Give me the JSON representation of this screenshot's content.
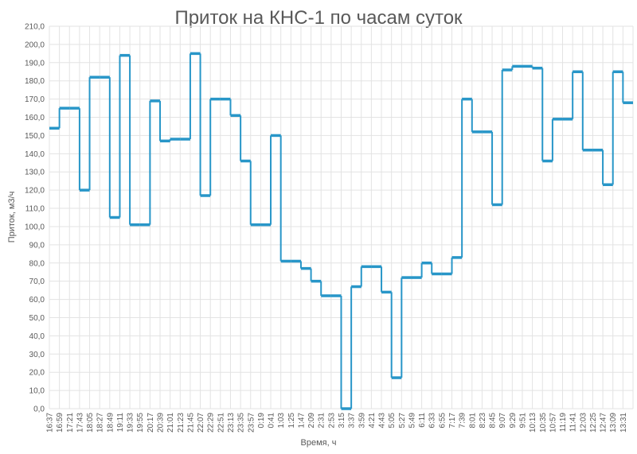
{
  "chart_data": {
    "type": "step-line",
    "title": "Приток на КНС-1 по часам суток",
    "x_label": "Время, ч",
    "y_label": "Приток, м3/ч",
    "categories": [
      "16:37",
      "16:59",
      "17:21",
      "17:43",
      "18:05",
      "18:27",
      "18:49",
      "19:11",
      "19:33",
      "19:55",
      "20:17",
      "20:39",
      "21:01",
      "21:23",
      "21:45",
      "22:07",
      "22:29",
      "22:51",
      "23:13",
      "23:35",
      "23:57",
      "0:19",
      "0:41",
      "1:03",
      "1:25",
      "1:47",
      "2:09",
      "2:31",
      "2:53",
      "3:15",
      "3:37",
      "3:59",
      "4:21",
      "4:43",
      "5:05",
      "5:27",
      "5:49",
      "6:11",
      "6:33",
      "6:55",
      "7:17",
      "7:39",
      "8:01",
      "8:23",
      "8:45",
      "9:07",
      "9:29",
      "9:51",
      "10:13",
      "10:35",
      "10:57",
      "11:19",
      "11:41",
      "12:03",
      "12:25",
      "12:47",
      "13:09",
      "13:31"
    ],
    "values": [
      154,
      165,
      165,
      120,
      182,
      182,
      105,
      194,
      101,
      101,
      169,
      147,
      148,
      148,
      195,
      117,
      170,
      170,
      161,
      136,
      101,
      101,
      150,
      81,
      81,
      77,
      70,
      62,
      62,
      0,
      67,
      78,
      78,
      64,
      17,
      72,
      72,
      80,
      74,
      74,
      83,
      170,
      152,
      152,
      112,
      186,
      188,
      188,
      187,
      136,
      159,
      159,
      185,
      142,
      142,
      123,
      185,
      168
    ],
    "color": "#2896c8",
    "ylim": [
      0,
      210
    ],
    "yticks": [
      {
        "value": 0,
        "label": "0,0"
      },
      {
        "value": 10,
        "label": "10,0"
      },
      {
        "value": 20,
        "label": "20,0"
      },
      {
        "value": 30,
        "label": "30,0"
      },
      {
        "value": 40,
        "label": "40,0"
      },
      {
        "value": 50,
        "label": "50,0"
      },
      {
        "value": 60,
        "label": "60,0"
      },
      {
        "value": 70,
        "label": "70,0"
      },
      {
        "value": 80,
        "label": "80,0"
      },
      {
        "value": 90,
        "label": "90,0"
      },
      {
        "value": 100,
        "label": "100,0"
      },
      {
        "value": 110,
        "label": "110,0"
      },
      {
        "value": 120,
        "label": "120,0"
      },
      {
        "value": 130,
        "label": "130,0"
      },
      {
        "value": 140,
        "label": "140,0"
      },
      {
        "value": 150,
        "label": "150,0"
      },
      {
        "value": 160,
        "label": "160,0"
      },
      {
        "value": 170,
        "label": "170,0"
      },
      {
        "value": 180,
        "label": "180,0"
      },
      {
        "value": 190,
        "label": "190,0"
      },
      {
        "value": 200,
        "label": "200,0"
      },
      {
        "value": 210,
        "label": "210,0"
      }
    ],
    "grid": true
  }
}
